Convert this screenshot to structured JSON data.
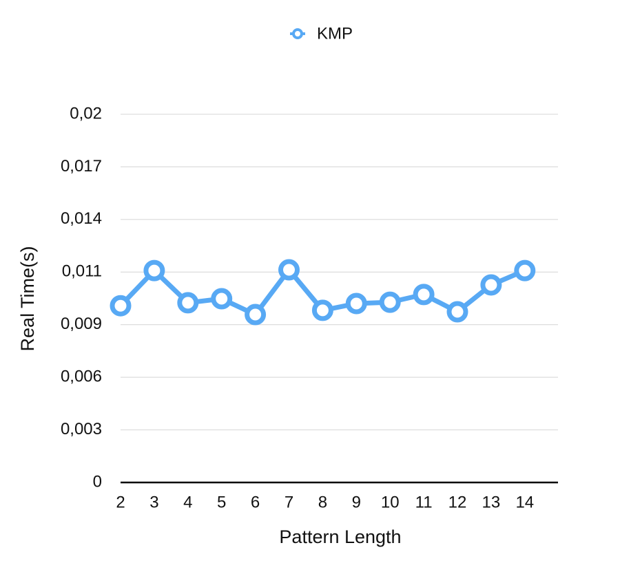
{
  "chart_data": {
    "type": "line",
    "x_label": "Pattern Length",
    "y_label": "Real Time(s)",
    "categories": [
      "2",
      "3",
      "4",
      "5",
      "6",
      "7",
      "8",
      "9",
      "10",
      "11",
      "12",
      "13",
      "14"
    ],
    "series": [
      {
        "name": "KMP",
        "color": "#58a9f4",
        "values": [
          0.0096,
          0.01151,
          0.00976,
          0.00998,
          0.00912,
          0.01155,
          0.00935,
          0.00972,
          0.00979,
          0.01021,
          0.00927,
          0.01073,
          0.01151
        ]
      }
    ],
    "ylim": [
      0,
      0.02
    ],
    "yticks": [
      0,
      {
        "value": 0.0028571,
        "label": "0,003"
      },
      {
        "value": 0.0057143,
        "label": "0,006"
      },
      {
        "value": 0.0085714,
        "label": "0,009"
      },
      {
        "value": 0.0114286,
        "label": "0,011"
      },
      {
        "value": 0.0142857,
        "label": "0,014"
      },
      {
        "value": 0.0171429,
        "label": "0,017"
      },
      {
        "value": 0.02,
        "label": "0,02"
      }
    ],
    "grid": true,
    "legend": "top"
  }
}
